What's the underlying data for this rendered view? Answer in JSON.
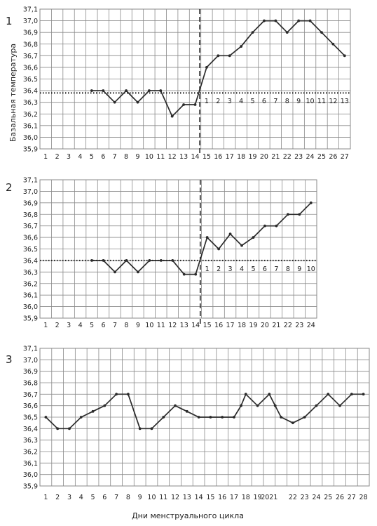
{
  "y_axis_label": "Базальная температура",
  "x_axis_label": "Дни менструального цикла",
  "colors": {
    "grid": "#8a8a8a",
    "line": "#2b2b2b",
    "background": "#ffffff"
  },
  "chart_data": [
    {
      "type": "line",
      "panel_number": "1",
      "categories": [
        "1",
        "2",
        "3",
        "4",
        "5",
        "6",
        "7",
        "8",
        "9",
        "10",
        "11",
        "12",
        "13",
        "14",
        "15",
        "16",
        "17",
        "18",
        "19",
        "20",
        "21",
        "22",
        "23",
        "24",
        "25",
        "26",
        "27"
      ],
      "series": [
        {
          "x": [
            5,
            6,
            7,
            8,
            9,
            10,
            11,
            12,
            13,
            14,
            15,
            16,
            17,
            18,
            19,
            20,
            21,
            22,
            23,
            24,
            25,
            26,
            27
          ],
          "values": [
            36.4,
            36.4,
            36.3,
            36.4,
            36.3,
            36.4,
            36.4,
            36.18,
            36.28,
            36.28,
            36.6,
            36.7,
            36.7,
            36.78,
            36.9,
            37.0,
            37.0,
            36.9,
            37.0,
            37.0,
            36.9,
            36.8,
            36.7
          ]
        }
      ],
      "ylim": [
        35.9,
        37.1
      ],
      "yticks": [
        "37,1",
        "37,0",
        "36,9",
        "36,8",
        "36,7",
        "36,6",
        "36,5",
        "36,4",
        "36,3",
        "36,2",
        "36,1",
        "36,0",
        "35,9"
      ],
      "reference_line": 36.38,
      "vertical_marker": 14,
      "luteal_day_labels": [
        "1",
        "2",
        "3",
        "4",
        "5",
        "6",
        "7",
        "8",
        "9",
        "10",
        "11",
        "12",
        "13"
      ],
      "grid": true
    },
    {
      "type": "line",
      "panel_number": "2",
      "categories": [
        "1",
        "2",
        "3",
        "4",
        "5",
        "6",
        "7",
        "8",
        "9",
        "10",
        "11",
        "12",
        "13",
        "14",
        "15",
        "16",
        "17",
        "18",
        "19",
        "20",
        "21",
        "22",
        "23",
        "24"
      ],
      "series": [
        {
          "x": [
            5,
            6,
            7,
            8,
            9,
            10,
            11,
            12,
            13,
            14,
            15,
            16,
            17,
            18,
            19,
            20,
            21,
            22,
            23,
            24
          ],
          "values": [
            36.4,
            36.4,
            36.3,
            36.4,
            36.3,
            36.4,
            36.4,
            36.4,
            36.28,
            36.28,
            36.6,
            36.5,
            36.63,
            36.53,
            36.6,
            36.7,
            36.7,
            36.8,
            36.8,
            36.9
          ]
        }
      ],
      "ylim": [
        35.9,
        37.1
      ],
      "yticks": [
        "37,1",
        "37,0",
        "36,9",
        "36,8",
        "36,7",
        "36,6",
        "36,5",
        "36,4",
        "36,3",
        "36,2",
        "36,1",
        "36,0",
        "35,9"
      ],
      "reference_line": 36.4,
      "vertical_marker": 14,
      "luteal_day_labels": [
        "1",
        "2",
        "3",
        "4",
        "5",
        "6",
        "7",
        "8",
        "9",
        "10"
      ],
      "grid": true
    },
    {
      "type": "line",
      "panel_number": "3",
      "categories": [
        "1",
        "2",
        "3",
        "4",
        "5",
        "6",
        "7",
        "8",
        "9",
        "10",
        "11",
        "12",
        "13",
        "14",
        "15",
        "16",
        "17",
        "18",
        "19",
        "20",
        "21",
        "22",
        "23",
        "24",
        "25",
        "26",
        "27",
        "28"
      ],
      "series": [
        {
          "x": [
            1,
            2,
            3,
            4,
            5,
            6,
            7,
            8,
            9,
            10,
            11,
            12,
            13,
            14,
            15,
            16,
            17,
            17.6,
            18,
            19,
            20,
            20.5,
            21,
            22,
            23,
            24,
            25,
            26,
            27,
            28
          ],
          "values": [
            36.5,
            36.4,
            36.4,
            36.5,
            36.55,
            36.6,
            36.7,
            36.7,
            36.4,
            36.4,
            36.5,
            36.6,
            36.55,
            36.5,
            36.5,
            36.5,
            36.5,
            36.6,
            36.7,
            36.6,
            36.7,
            36.6,
            36.5,
            36.45,
            36.5,
            36.6,
            36.7,
            36.6,
            36.7,
            36.7
          ]
        }
      ],
      "ylim": [
        35.9,
        37.1
      ],
      "yticks": [
        "37,1",
        "37,0",
        "36,9",
        "36,8",
        "36,7",
        "36,6",
        "36,5",
        "36,4",
        "36,3",
        "36,2",
        "36,1",
        "36,0",
        "35,9"
      ],
      "xtick_labels": [
        "1",
        "2",
        "3",
        "4",
        "5",
        "6",
        "7",
        "8",
        "9",
        "10",
        "11",
        "12",
        "13",
        "14",
        "15",
        "16",
        "17",
        "18",
        "19",
        "2021",
        "",
        "22",
        "23",
        "24",
        "25",
        "26",
        "27",
        "28"
      ],
      "grid": true
    }
  ]
}
